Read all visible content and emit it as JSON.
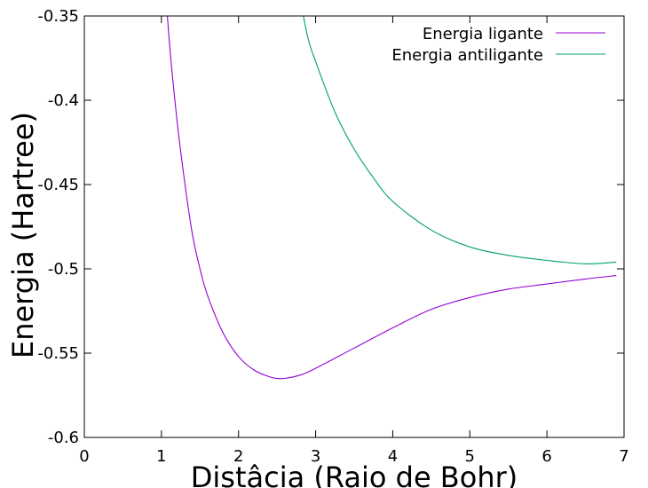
{
  "chart_data": {
    "type": "line",
    "title": "",
    "xlabel": "Distâcia (Raio de Bohr)",
    "ylabel": "Energia (Hartree)",
    "xlim": [
      0,
      7
    ],
    "ylim": [
      -0.6,
      -0.35
    ],
    "xticks": [
      0,
      1,
      2,
      3,
      4,
      5,
      6,
      7
    ],
    "yticks": [
      -0.6,
      -0.55,
      -0.5,
      -0.45,
      -0.4,
      -0.35
    ],
    "xtick_labels": [
      "0",
      "1",
      "2",
      "3",
      "4",
      "5",
      "6",
      "7"
    ],
    "ytick_labels": [
      "-0.6",
      "-0.55",
      "-0.5",
      "-0.45",
      "-0.4",
      "-0.35"
    ],
    "grid": false,
    "legend_position": "top-right",
    "series": [
      {
        "name": "Energia ligante",
        "color": "#9400d3",
        "x": [
          1.0,
          1.1,
          1.2,
          1.3,
          1.4,
          1.5,
          1.6,
          1.8,
          2.0,
          2.2,
          2.4,
          2.5,
          2.6,
          2.8,
          3.0,
          3.5,
          4.0,
          4.5,
          5.0,
          5.5,
          6.0,
          6.5,
          6.9
        ],
        "y": [
          -0.3,
          -0.364,
          -0.411,
          -0.448,
          -0.479,
          -0.5,
          -0.516,
          -0.538,
          -0.552,
          -0.56,
          -0.564,
          -0.565,
          -0.565,
          -0.563,
          -0.559,
          -0.547,
          -0.535,
          -0.524,
          -0.517,
          -0.512,
          -0.509,
          -0.506,
          -0.504
        ]
      },
      {
        "name": "Energia antiligante",
        "color": "#009e73",
        "x": [
          2.8,
          2.9,
          3.0,
          3.25,
          3.5,
          3.75,
          4.0,
          4.5,
          5.0,
          5.5,
          6.0,
          6.5,
          6.9
        ],
        "y": [
          -0.34,
          -0.363,
          -0.377,
          -0.407,
          -0.429,
          -0.446,
          -0.46,
          -0.477,
          -0.487,
          -0.492,
          -0.495,
          -0.497,
          -0.496
        ]
      }
    ]
  }
}
